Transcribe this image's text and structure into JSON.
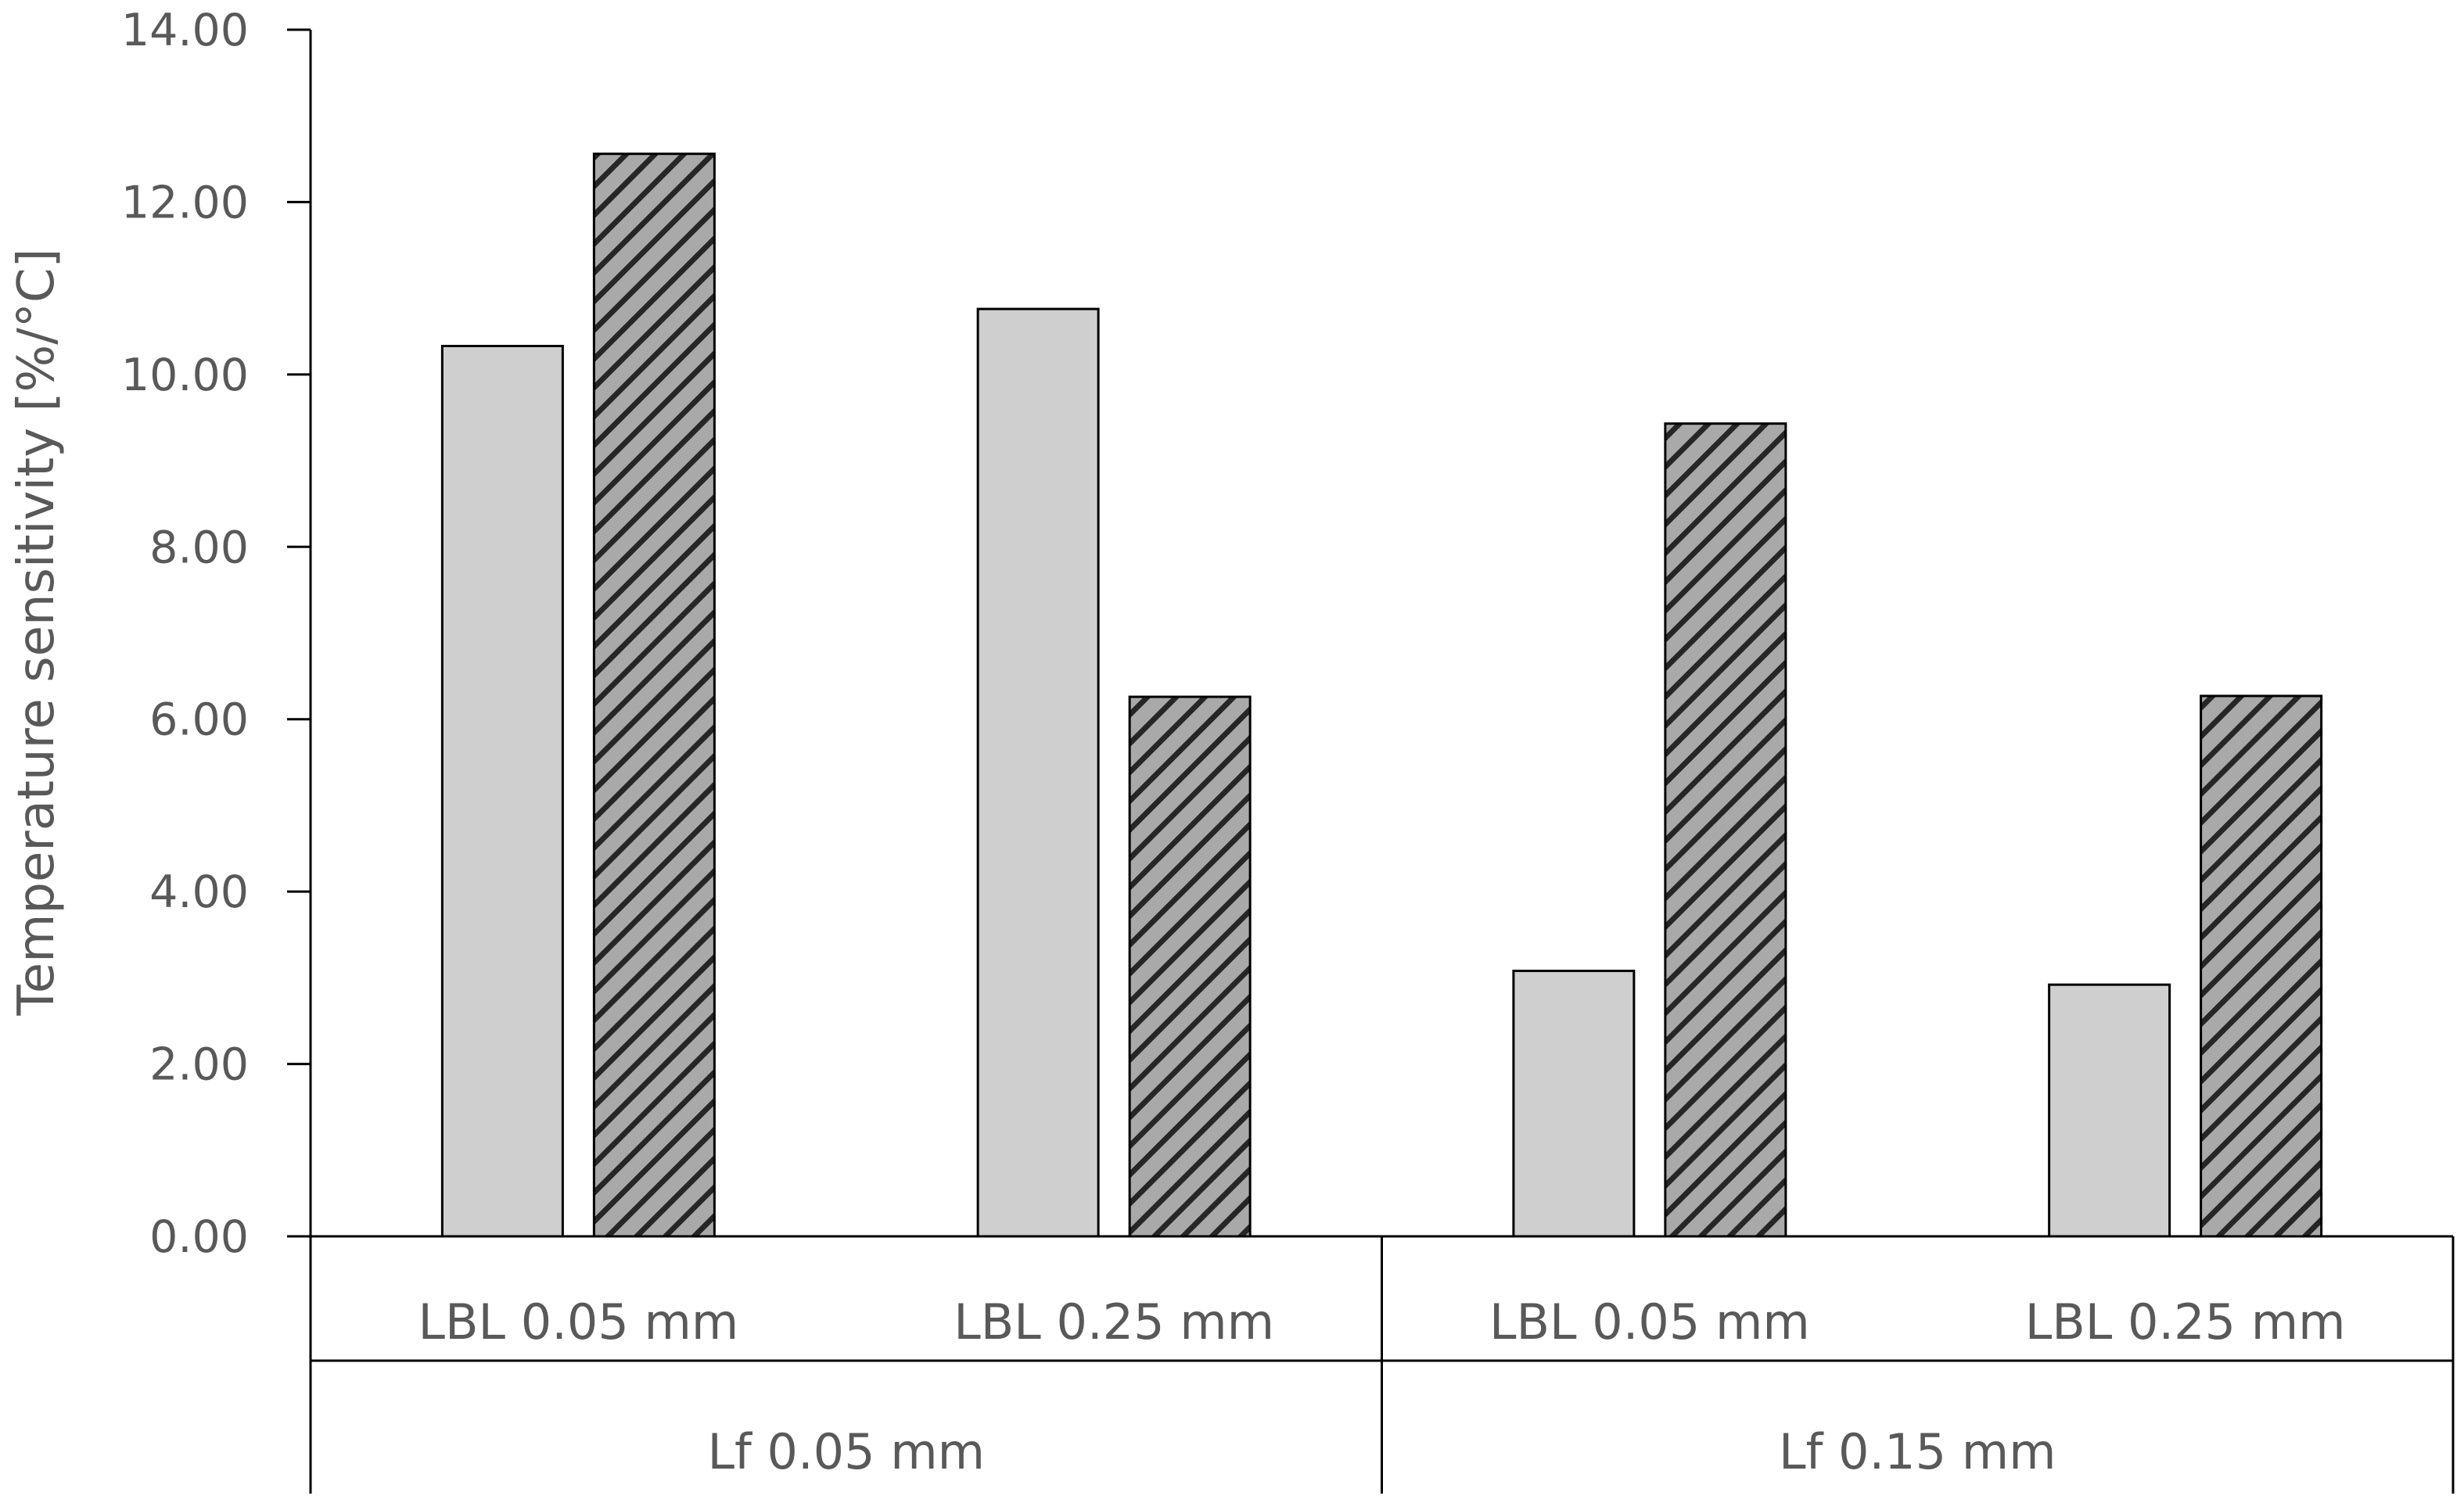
{
  "chart_data": {
    "type": "bar",
    "title": "",
    "ylabel": "Temperature sensitivity [%/°C]",
    "xlabel": "",
    "ylim": [
      0,
      14
    ],
    "y_ticks": [
      "0.00",
      "2.00",
      "4.00",
      "6.00",
      "8.00",
      "10.00",
      "12.00",
      "14.00"
    ],
    "grid": false,
    "legend": "none",
    "categories": [
      "LBL 0.05 mm",
      "LBL 0.25 mm",
      "LBL 0.05 mm",
      "LBL 0.25 mm"
    ],
    "groups": [
      {
        "label": "Lf 0.05 mm",
        "categories": [
          0,
          1
        ]
      },
      {
        "label": "Lf 0.15 mm",
        "categories": [
          2,
          3
        ]
      }
    ],
    "series": [
      {
        "values": [
          10.33,
          10.76,
          3.08,
          2.92
        ],
        "fill": "#d0cfd0",
        "pattern": "solid"
      },
      {
        "values": [
          12.56,
          6.26,
          9.43,
          6.27
        ],
        "fill": "#a9a9a9",
        "pattern": "diagonal-hatch"
      }
    ]
  }
}
